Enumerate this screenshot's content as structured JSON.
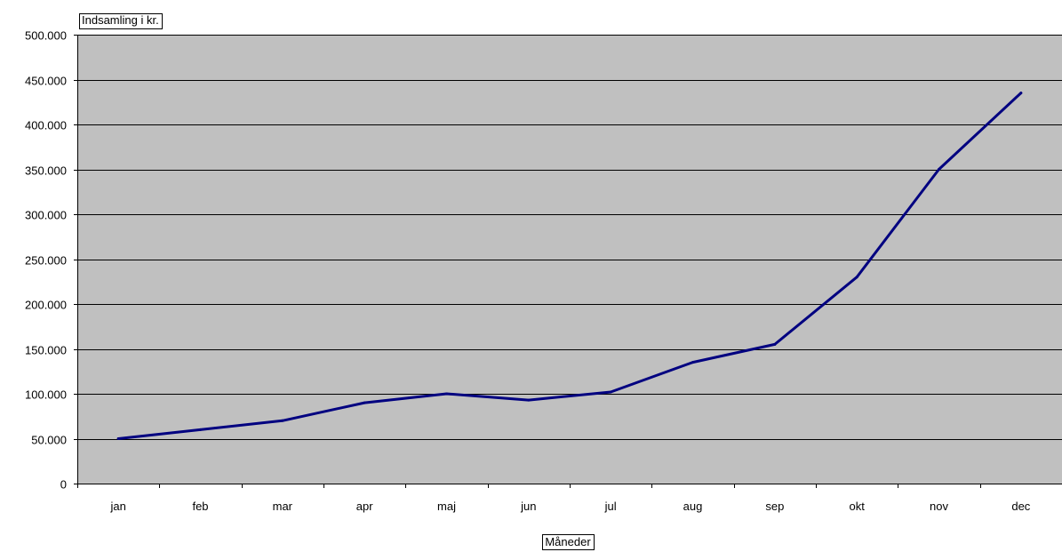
{
  "chart_data": {
    "type": "line",
    "title": "",
    "ylabel": "Indsamling i kr.",
    "xlabel": "Måneder",
    "categories": [
      "jan",
      "feb",
      "mar",
      "apr",
      "maj",
      "jun",
      "jul",
      "aug",
      "sep",
      "okt",
      "nov",
      "dec"
    ],
    "series": [
      {
        "values": [
          50000,
          60000,
          70000,
          90000,
          100000,
          93000,
          102000,
          135000,
          155000,
          230000,
          350000,
          435000
        ]
      }
    ],
    "ylim": [
      0,
      500000
    ],
    "yticks": [
      0,
      50000,
      100000,
      150000,
      200000,
      250000,
      300000,
      350000,
      400000,
      450000,
      500000
    ],
    "ytick_labels": [
      "0",
      "50.000",
      "100.000",
      "150.000",
      "200.000",
      "250.000",
      "300.000",
      "350.000",
      "400.000",
      "450.000",
      "500.000"
    ],
    "grid": true,
    "legend": "none",
    "colors": {
      "plot_background": "#c0c0c0",
      "gridline": "#000000",
      "line": "#000080"
    }
  }
}
